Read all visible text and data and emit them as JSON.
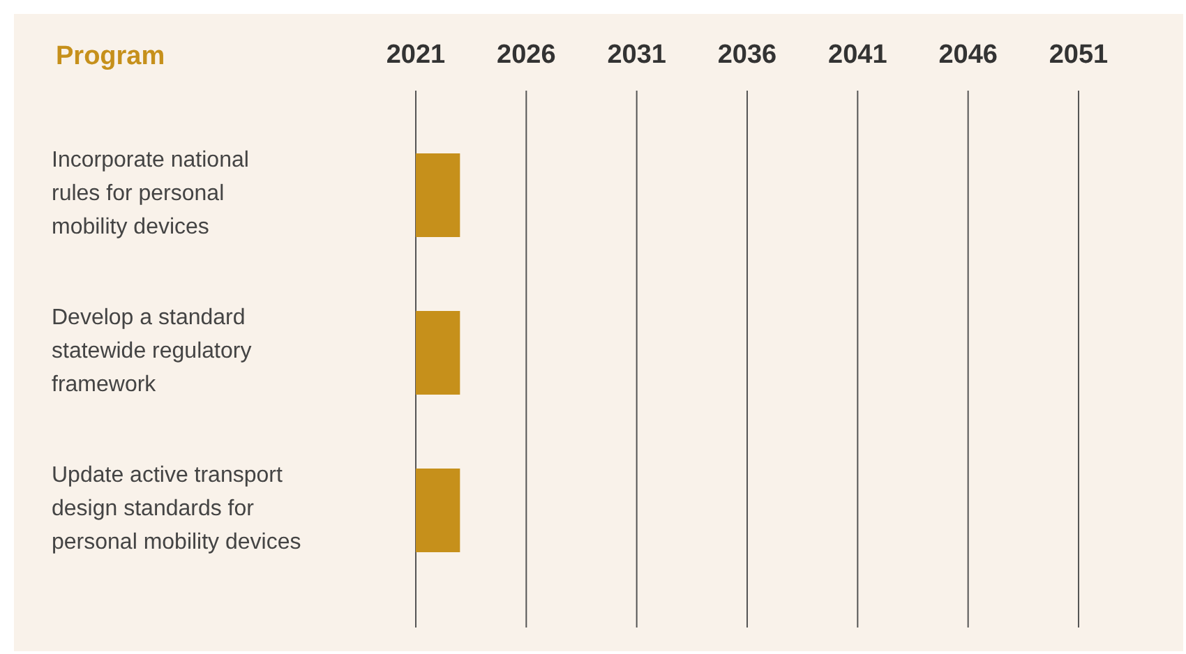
{
  "chart_data": {
    "type": "bar",
    "orientation": "horizontal",
    "ylabel": "Program",
    "categories": [
      "Incorporate national rules for personal mobility devices",
      "Develop a standard statewide regulatory framework",
      "Update active transport design standards for personal mobility devices"
    ],
    "base": [
      2021,
      2021,
      2021
    ],
    "values": [
      2,
      2,
      2
    ],
    "color": "#c6901b",
    "xlim": [
      2021,
      2051
    ],
    "xticks": [
      2021,
      2026,
      2031,
      2036,
      2041,
      2046,
      2051
    ],
    "grid": "x"
  }
}
